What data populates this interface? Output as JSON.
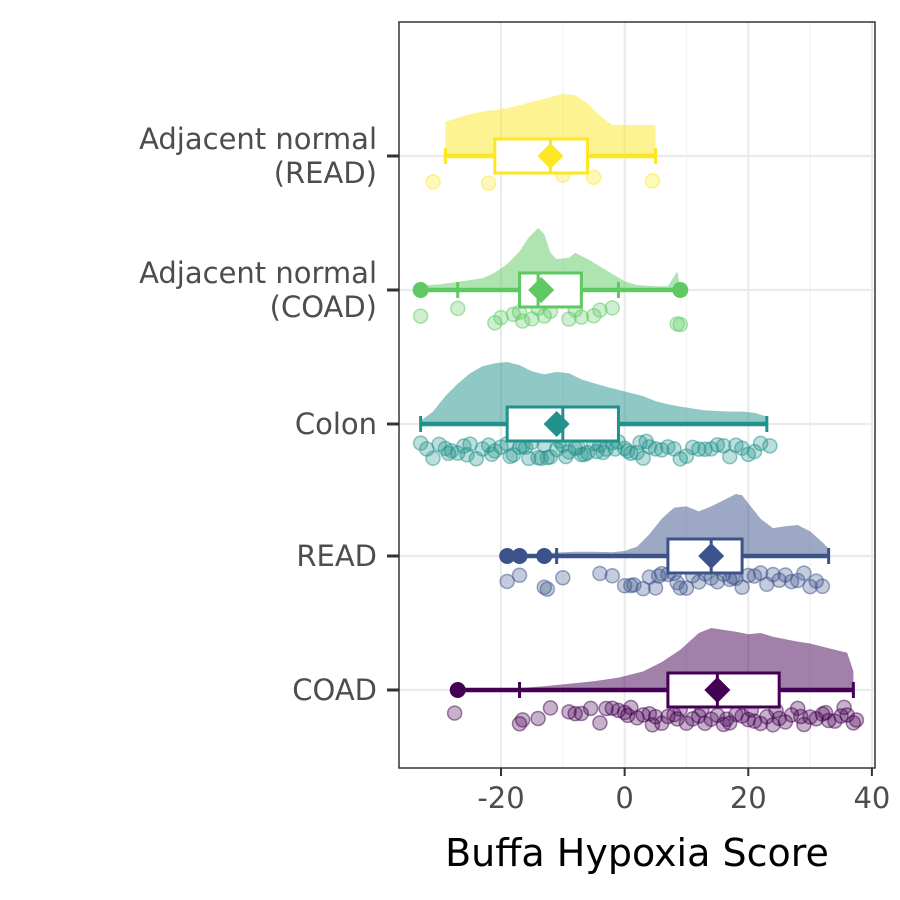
{
  "chart_data": {
    "type": "raincloud",
    "orientation": "horizontal",
    "xlabel": "Buffa Hypoxia Score",
    "ylabel": "",
    "xlim": [
      -36.5,
      40.5
    ],
    "x_ticks": [
      -20,
      0,
      20,
      40
    ],
    "x_tick_labels": [
      "-20",
      "0",
      "20",
      "40"
    ],
    "grid": true,
    "categories": [
      "Adjacent normal\n(READ)",
      "Adjacent normal\n(COAD)",
      "Colon",
      "READ",
      "COAD"
    ],
    "colors": {
      "Adjacent normal\n(READ)": "#FDE725",
      "Adjacent normal\n(COAD)": "#5EC962",
      "Colon": "#21918C",
      "READ": "#3B528B",
      "COAD": "#440154"
    },
    "series": [
      {
        "category": "Adjacent normal\n(READ)",
        "mean": -12,
        "box": {
          "whisker_low": -29,
          "q1": -21,
          "median": -12,
          "q3": -6,
          "whisker_high": 5
        },
        "outliers": [],
        "points": [
          -31,
          -22,
          -10,
          -5,
          4.5
        ],
        "density": [
          [
            -29,
            0.55
          ],
          [
            -26,
            0.65
          ],
          [
            -23,
            0.72
          ],
          [
            -20,
            0.75
          ],
          [
            -17,
            0.82
          ],
          [
            -14,
            0.9
          ],
          [
            -12,
            0.95
          ],
          [
            -10,
            1.0
          ],
          [
            -8,
            0.98
          ],
          [
            -6,
            0.85
          ],
          [
            -4,
            0.65
          ],
          [
            -2,
            0.5
          ],
          [
            0,
            0.5
          ],
          [
            2,
            0.5
          ],
          [
            5,
            0.5
          ]
        ]
      },
      {
        "category": "Adjacent normal\n(COAD)",
        "mean": -13.5,
        "box": {
          "whisker_low": -27,
          "q1": -17,
          "median": -14,
          "q3": -7,
          "whisker_high": -1
        },
        "outliers": [
          -33,
          9
        ],
        "points": [
          -33,
          -27,
          -21,
          -20,
          -18,
          -17,
          -16.5,
          -15,
          -14,
          -13,
          -12,
          -9,
          -8,
          -7,
          -5,
          -4,
          -2,
          8.5,
          9
        ],
        "density": [
          [
            -33,
            0.07
          ],
          [
            -30,
            0.09
          ],
          [
            -27,
            0.13
          ],
          [
            -25,
            0.16
          ],
          [
            -23,
            0.19
          ],
          [
            -21,
            0.28
          ],
          [
            -19,
            0.42
          ],
          [
            -17,
            0.62
          ],
          [
            -15.5,
            0.85
          ],
          [
            -14,
            1.0
          ],
          [
            -13,
            0.9
          ],
          [
            -12,
            0.6
          ],
          [
            -11,
            0.5
          ],
          [
            -9,
            0.52
          ],
          [
            -8,
            0.6
          ],
          [
            -6,
            0.5
          ],
          [
            -4,
            0.38
          ],
          [
            -2,
            0.26
          ],
          [
            0,
            0.14
          ],
          [
            2,
            0.08
          ],
          [
            5,
            0.06
          ],
          [
            7,
            0.06
          ],
          [
            8.5,
            0.3
          ],
          [
            9,
            0.05
          ]
        ]
      },
      {
        "category": "Colon",
        "mean": -11,
        "box": {
          "whisker_low": -33,
          "q1": -19,
          "median": -10,
          "q3": -1,
          "whisker_high": 23
        },
        "outliers": [],
        "points": [
          -33,
          -32,
          -31,
          -30,
          -29,
          -28,
          -27,
          -26,
          -25,
          -24,
          -23,
          -22,
          -21,
          -20,
          -19,
          -18,
          -17,
          -16,
          -15,
          -14,
          -13,
          -12,
          -11,
          -10,
          -9,
          -8,
          -7,
          -6,
          -5,
          -4,
          -3,
          -2,
          -1,
          0,
          1,
          2,
          3,
          4,
          5,
          6,
          8,
          10,
          12,
          14,
          16,
          18,
          20,
          22,
          23.5,
          -25.5,
          -18.5,
          -15.5,
          -12.5,
          -9.5,
          -6.5,
          -3.5,
          0.5,
          3.5,
          7,
          11,
          15,
          19,
          -28.5,
          -21.5,
          -16.5,
          -13.5,
          -10.5,
          -7.5,
          -4.5,
          -1.5,
          2.5,
          9,
          13,
          17,
          21
        ],
        "density": [
          [
            -33,
            0.05
          ],
          [
            -31,
            0.2
          ],
          [
            -29,
            0.45
          ],
          [
            -27,
            0.65
          ],
          [
            -25,
            0.82
          ],
          [
            -23,
            0.93
          ],
          [
            -21,
            0.98
          ],
          [
            -19,
            1.0
          ],
          [
            -17,
            0.95
          ],
          [
            -15,
            0.85
          ],
          [
            -13,
            0.8
          ],
          [
            -11,
            0.84
          ],
          [
            -9,
            0.82
          ],
          [
            -7,
            0.72
          ],
          [
            -5,
            0.66
          ],
          [
            -3,
            0.6
          ],
          [
            -1,
            0.55
          ],
          [
            1,
            0.5
          ],
          [
            3,
            0.45
          ],
          [
            5,
            0.37
          ],
          [
            7,
            0.32
          ],
          [
            9,
            0.28
          ],
          [
            11,
            0.25
          ],
          [
            13,
            0.22
          ],
          [
            15,
            0.21
          ],
          [
            17,
            0.2
          ],
          [
            19,
            0.2
          ],
          [
            21,
            0.18
          ],
          [
            23,
            0.12
          ]
        ]
      },
      {
        "category": "READ",
        "mean": 14,
        "box": {
          "whisker_low": -11,
          "q1": 7,
          "median": 14,
          "q3": 19,
          "whisker_high": 33
        },
        "outliers": [
          -19,
          -17,
          -13
        ],
        "points": [
          -19,
          -17,
          -13,
          -12.5,
          -10,
          -4,
          -2,
          0,
          1,
          1.5,
          3,
          4,
          5,
          5.5,
          6,
          7,
          8,
          8.5,
          9,
          10,
          11,
          12,
          13,
          14,
          15,
          16,
          17,
          17.5,
          18,
          19,
          20,
          21,
          22,
          23,
          24,
          25,
          26,
          27,
          28,
          29,
          30,
          31,
          32
        ],
        "density": [
          [
            -19,
            0.02
          ],
          [
            -15,
            0.03
          ],
          [
            -12,
            0.05
          ],
          [
            -8,
            0.07
          ],
          [
            -5,
            0.07
          ],
          [
            -2,
            0.06
          ],
          [
            0,
            0.08
          ],
          [
            2,
            0.15
          ],
          [
            4,
            0.35
          ],
          [
            6,
            0.6
          ],
          [
            8,
            0.78
          ],
          [
            10,
            0.8
          ],
          [
            12,
            0.72
          ],
          [
            14,
            0.8
          ],
          [
            16,
            0.9
          ],
          [
            18,
            1.0
          ],
          [
            19,
            0.98
          ],
          [
            20,
            0.85
          ],
          [
            22,
            0.6
          ],
          [
            24,
            0.45
          ],
          [
            26,
            0.48
          ],
          [
            28,
            0.5
          ],
          [
            30,
            0.4
          ],
          [
            32,
            0.22
          ],
          [
            33,
            0.12
          ]
        ]
      },
      {
        "category": "COAD",
        "mean": 15,
        "box": {
          "whisker_low": -17,
          "q1": 7,
          "median": 15,
          "q3": 25,
          "whisker_high": 37
        },
        "outliers": [
          -27
        ],
        "points": [
          -27.5,
          -17,
          -16.5,
          -14,
          -9,
          -7,
          -5.5,
          -4,
          -3,
          -2,
          -1,
          0,
          1,
          2,
          3,
          4,
          5,
          6,
          7,
          8,
          9,
          10,
          11,
          12,
          13,
          14,
          15,
          16,
          17,
          18,
          19,
          20,
          21,
          22,
          23,
          24,
          25,
          26,
          27,
          28,
          29,
          30,
          31,
          32,
          33,
          34,
          35,
          36,
          37,
          37.5,
          -12,
          -8,
          0.5,
          4.5,
          8.5,
          12.5,
          16.5,
          20.5,
          24.5,
          28.5,
          32.5,
          35.5
        ],
        "density": [
          [
            -17,
            0.03
          ],
          [
            -13,
            0.06
          ],
          [
            -9,
            0.1
          ],
          [
            -5,
            0.14
          ],
          [
            -1,
            0.2
          ],
          [
            3,
            0.3
          ],
          [
            6,
            0.45
          ],
          [
            9,
            0.65
          ],
          [
            12,
            0.92
          ],
          [
            14,
            1.0
          ],
          [
            16,
            0.97
          ],
          [
            18,
            0.94
          ],
          [
            20,
            0.9
          ],
          [
            22,
            0.92
          ],
          [
            24,
            0.86
          ],
          [
            26,
            0.82
          ],
          [
            28,
            0.78
          ],
          [
            30,
            0.75
          ],
          [
            32,
            0.7
          ],
          [
            34,
            0.65
          ],
          [
            36,
            0.6
          ],
          [
            37,
            0.3
          ]
        ]
      }
    ]
  }
}
